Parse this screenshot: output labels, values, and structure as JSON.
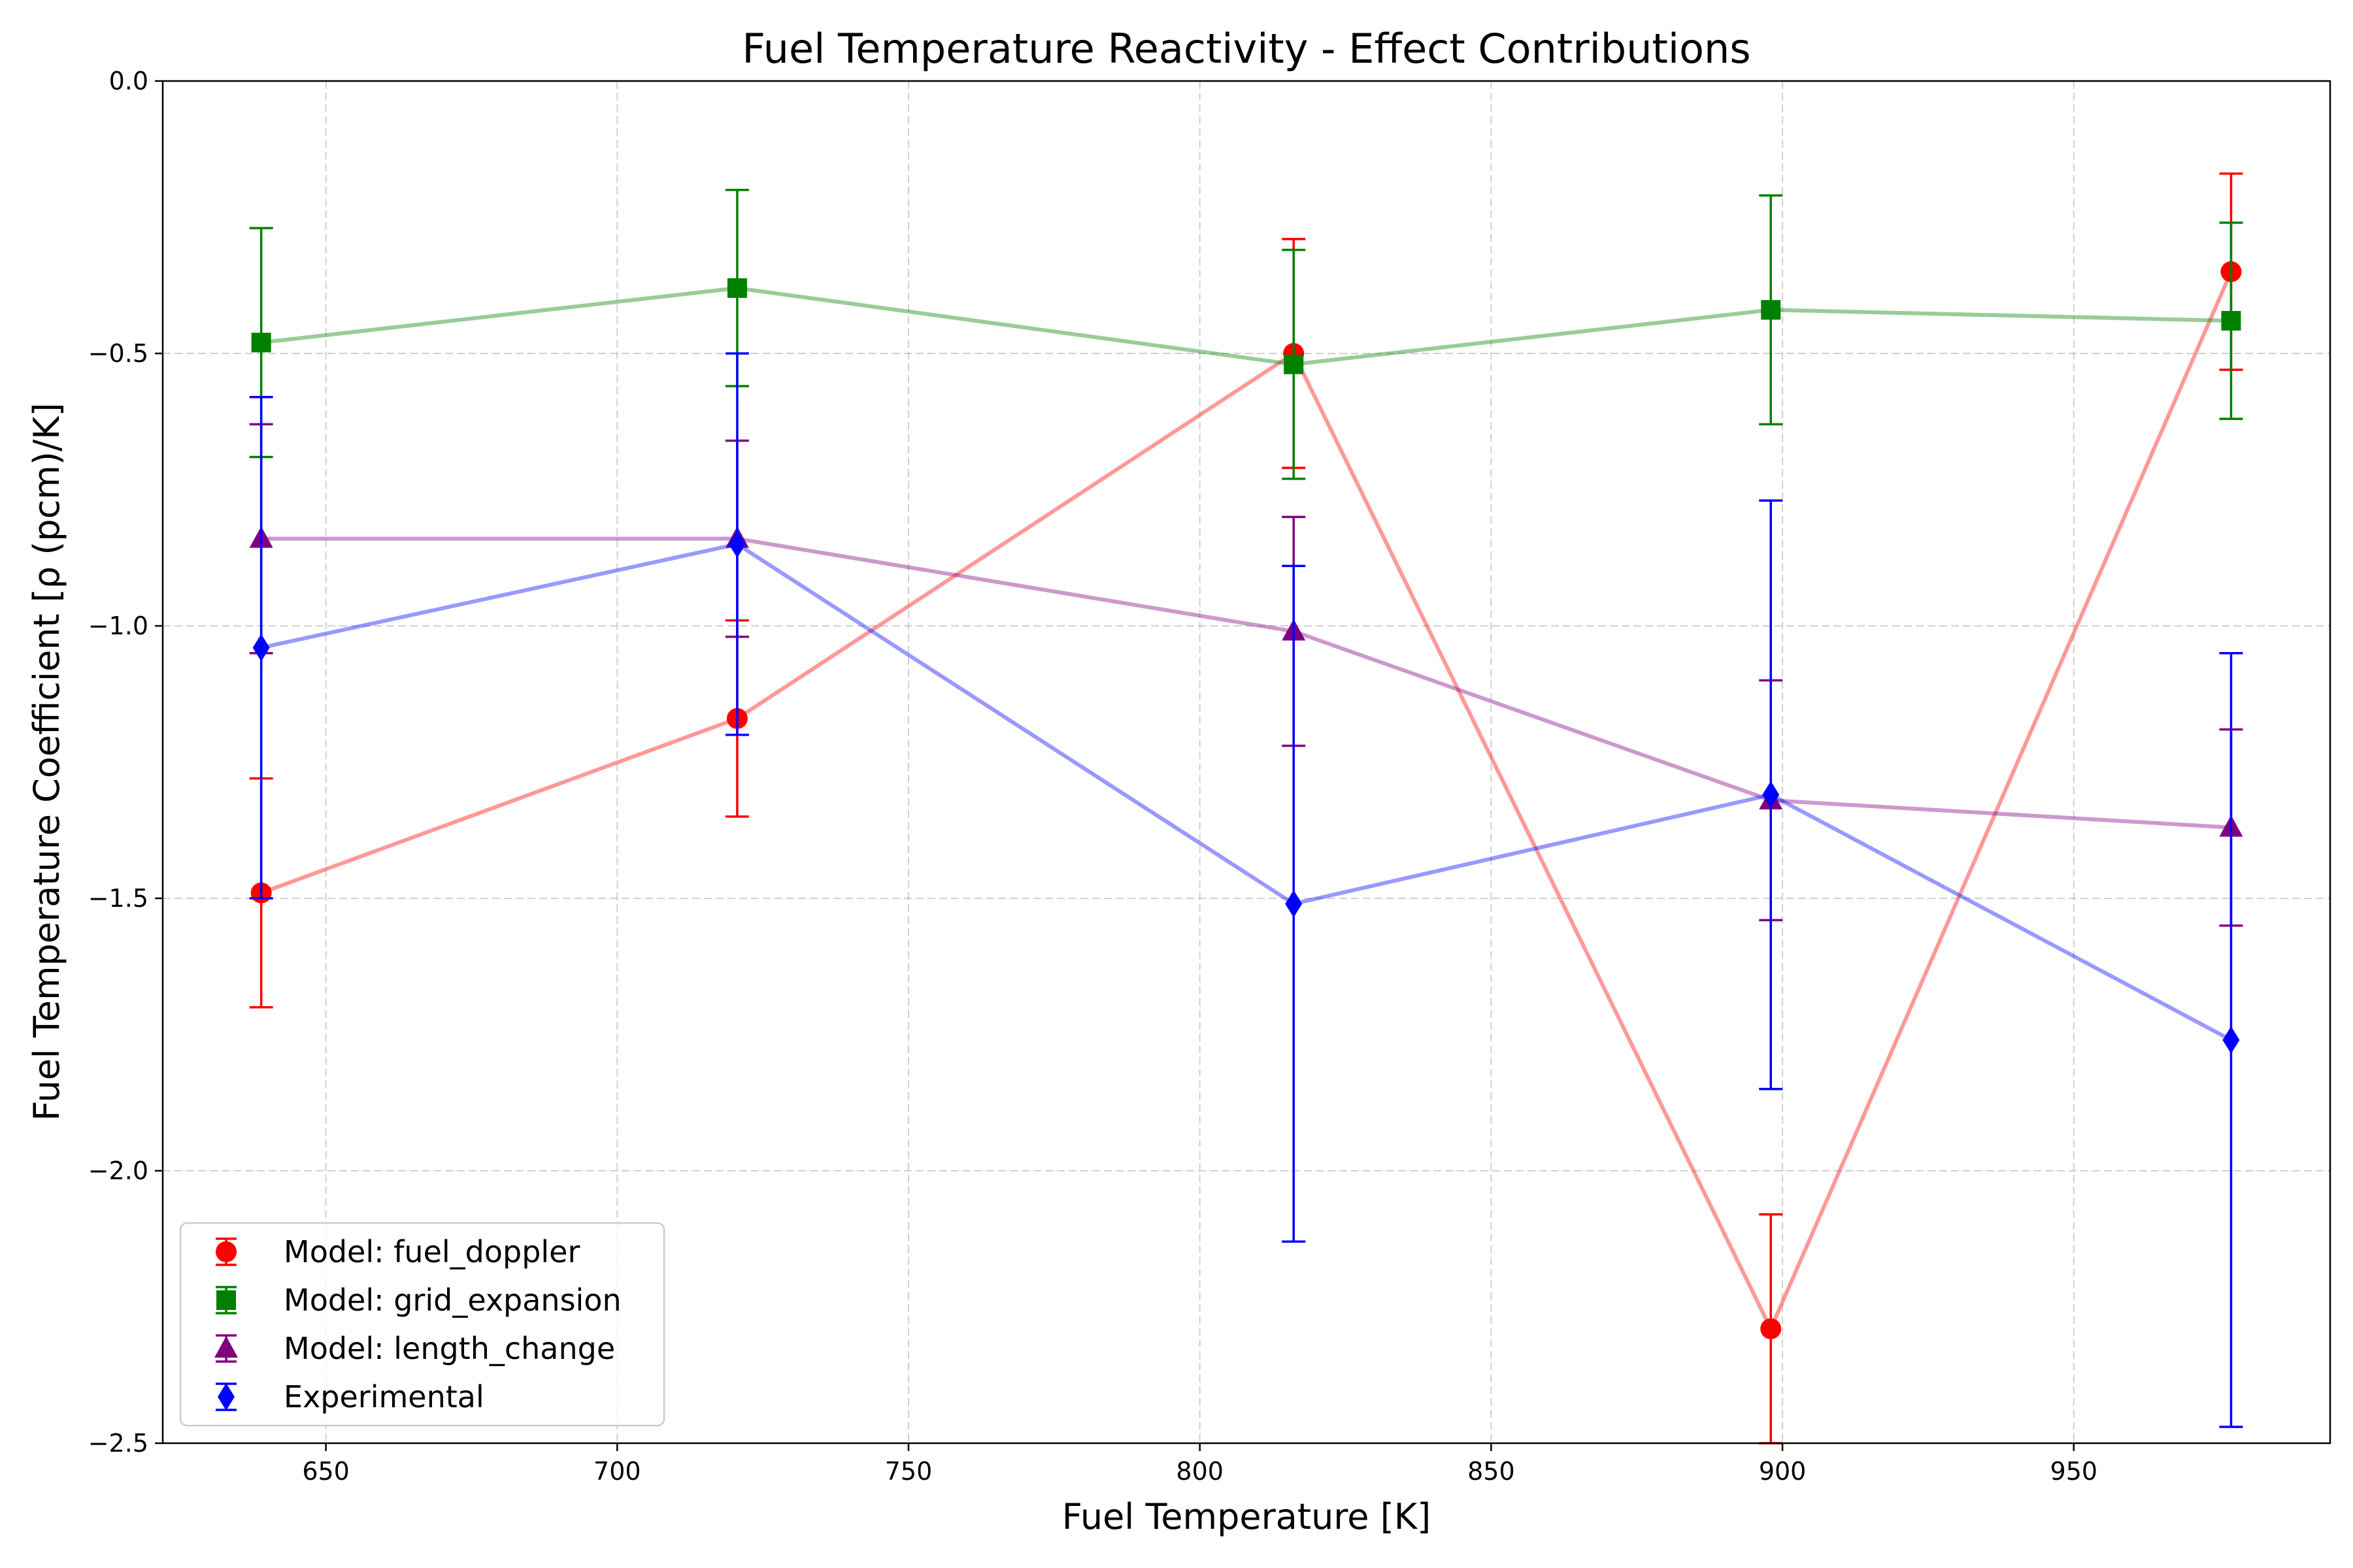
{
  "chart_data": {
    "type": "line",
    "title": "Fuel Temperature Reactivity - Effect Contributions",
    "xlabel": "Fuel Temperature [K]",
    "ylabel": "Fuel Temperature Coefficient [ρ (pcm)/K]",
    "xlim": [
      622,
      994
    ],
    "ylim": [
      -2.5,
      0.0
    ],
    "xticks": [
      650,
      700,
      750,
      800,
      850,
      900,
      950
    ],
    "yticks": [
      0.0,
      -0.5,
      -1.0,
      -1.5,
      -2.0,
      -2.5
    ],
    "xtick_labels": [
      "650",
      "700",
      "750",
      "800",
      "850",
      "900",
      "950"
    ],
    "ytick_labels": [
      "0.0",
      "−0.5",
      "−1.0",
      "−1.5",
      "−2.0",
      "−2.5"
    ],
    "grid": true,
    "legend_position": "lower-left",
    "x": [
      638.9,
      720.6,
      816.1,
      898.0,
      977.0
    ],
    "series": [
      {
        "name": "Model: fuel_doppler",
        "marker": "circle",
        "color": "#ff0000",
        "values": [
          -1.49,
          -1.17,
          -0.5,
          -2.29,
          -0.35
        ],
        "errors": [
          0.21,
          0.18,
          0.21,
          0.21,
          0.18
        ]
      },
      {
        "name": "Model: grid_expansion",
        "marker": "square",
        "color": "#008000",
        "values": [
          -0.48,
          -0.38,
          -0.52,
          -0.42,
          -0.44
        ],
        "errors": [
          0.21,
          0.18,
          0.21,
          0.21,
          0.18
        ]
      },
      {
        "name": "Model: length_change",
        "marker": "triangle",
        "color": "#800080",
        "values": [
          -0.84,
          -0.84,
          -1.01,
          -1.32,
          -1.37
        ],
        "errors": [
          0.21,
          0.18,
          0.21,
          0.22,
          0.18
        ]
      },
      {
        "name": "Experimental",
        "marker": "diamond",
        "color": "#0000ff",
        "values": [
          -1.04,
          -0.85,
          -1.51,
          -1.31,
          -1.76
        ],
        "errors": [
          0.46,
          0.35,
          0.62,
          0.54,
          0.71
        ]
      }
    ]
  }
}
